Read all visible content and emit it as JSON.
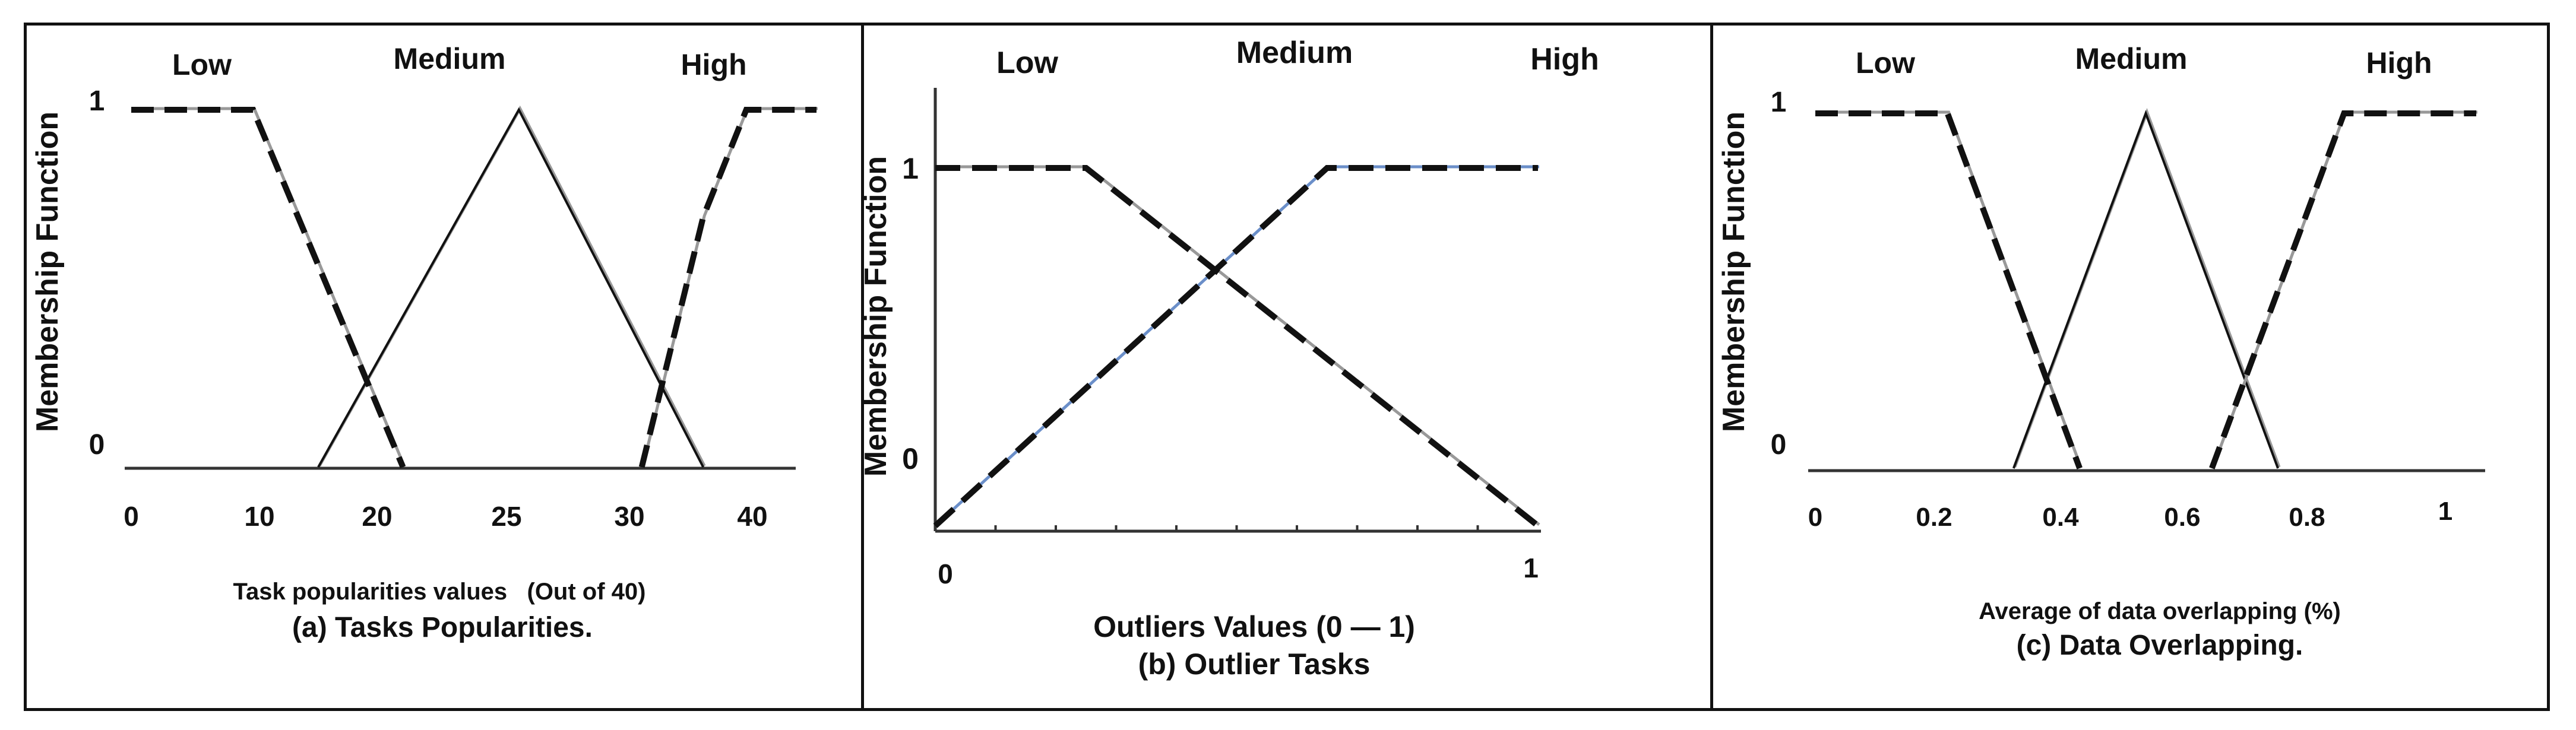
{
  "chart_data": [
    {
      "type": "line",
      "panel": "a",
      "ylabel": "Membership Function",
      "xlabel": "Task popularities values   (Out of 40)",
      "caption": "(a) Tasks Popularities.",
      "x_ticks": [
        "0",
        "10",
        "20",
        "25",
        "30",
        "40"
      ],
      "y_ticks": [
        "0",
        "1"
      ],
      "terms": [
        "Low",
        "Medium",
        "High"
      ],
      "series": [
        {
          "name": "Low",
          "style": "dashed",
          "points": [
            [
              0,
              1
            ],
            [
              9.5,
              1
            ],
            [
              21,
              0
            ]
          ]
        },
        {
          "name": "Medium",
          "style": "solid",
          "points": [
            [
              15,
              0
            ],
            [
              25.5,
              1
            ],
            [
              36,
              0
            ]
          ]
        },
        {
          "name": "High",
          "style": "dashed",
          "points": [
            [
              31,
              0
            ],
            [
              36,
              0.7
            ],
            [
              39.5,
              1
            ],
            [
              45,
              1
            ]
          ]
        }
      ]
    },
    {
      "type": "line",
      "panel": "b",
      "ylabel": "Membership Function",
      "xlabel": "Outliers Values (0 — 1)",
      "caption": "(b) Outlier Tasks",
      "x_ticks": [
        "0",
        "1"
      ],
      "y_ticks": [
        "0",
        "1"
      ],
      "terms": [
        "Low",
        "Medium",
        "High"
      ],
      "series": [
        {
          "name": "Low",
          "style": "dashed",
          "points": [
            [
              0,
              1
            ],
            [
              0.25,
              1
            ],
            [
              1,
              0
            ]
          ]
        },
        {
          "name": "High",
          "style": "dashed",
          "points": [
            [
              0,
              0
            ],
            [
              0.65,
              1
            ],
            [
              1,
              1
            ]
          ]
        }
      ]
    },
    {
      "type": "line",
      "panel": "c",
      "ylabel": "Membership Function",
      "xlabel": "Average of data overlapping (%)",
      "caption": "(c) Data Overlapping.",
      "x_ticks": [
        "0",
        "0.2",
        "0.4",
        "0.6",
        "0.8",
        "1"
      ],
      "y_ticks": [
        "0",
        "1"
      ],
      "terms": [
        "Low",
        "Medium",
        "High"
      ],
      "series": [
        {
          "name": "Low",
          "style": "dashed",
          "points": [
            [
              0,
              1
            ],
            [
              0.2,
              1
            ],
            [
              0.4,
              0
            ]
          ]
        },
        {
          "name": "Medium",
          "style": "solid",
          "points": [
            [
              0.3,
              0
            ],
            [
              0.5,
              1
            ],
            [
              0.7,
              0
            ]
          ]
        },
        {
          "name": "High",
          "style": "dashed",
          "points": [
            [
              0.6,
              0
            ],
            [
              0.8,
              1
            ],
            [
              1,
              1
            ]
          ]
        }
      ]
    }
  ]
}
